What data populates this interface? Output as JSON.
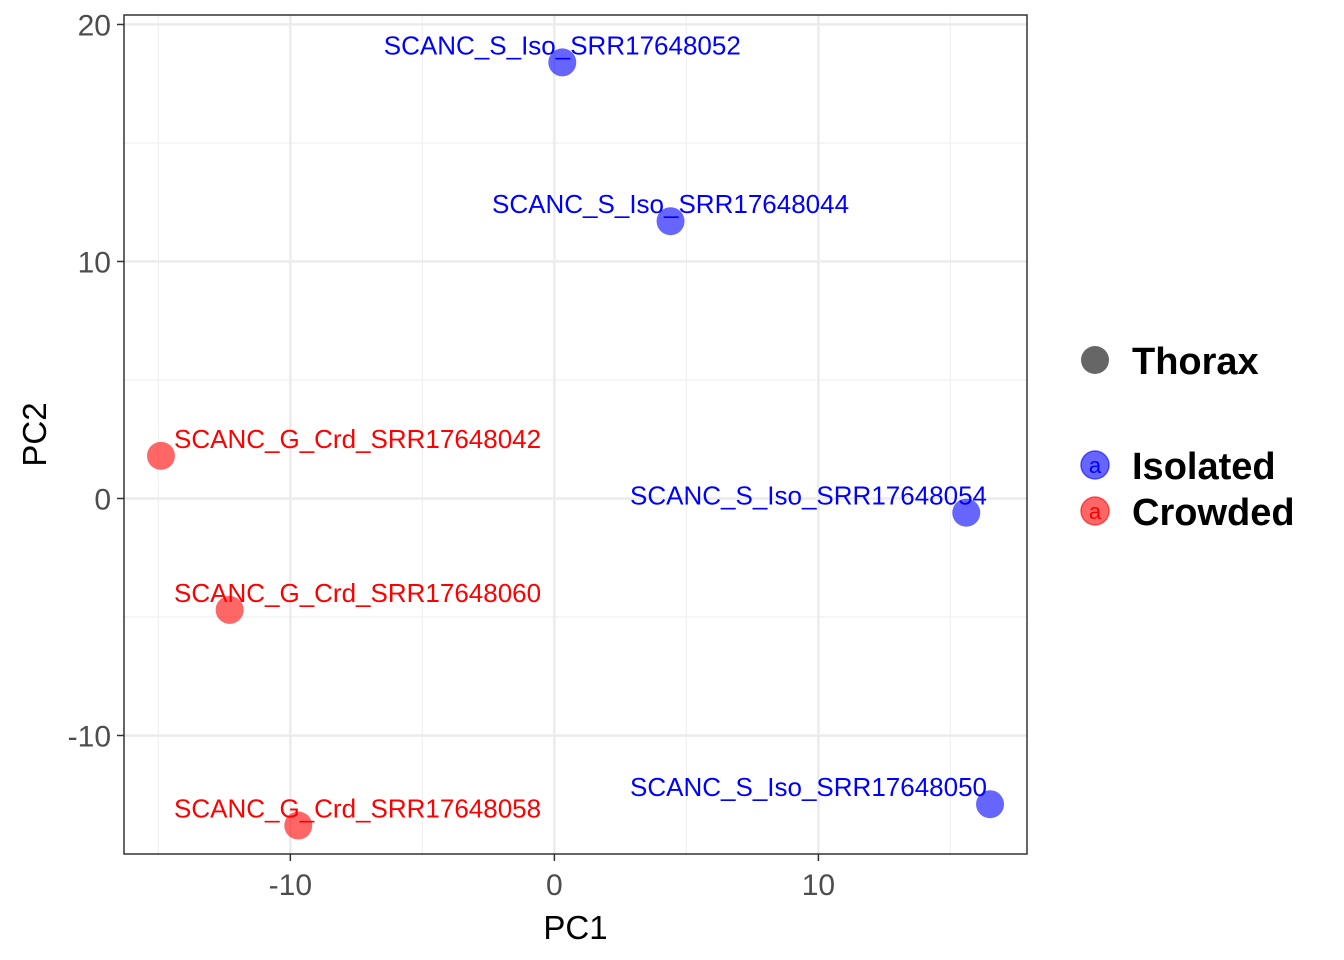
{
  "chart_data": {
    "type": "scatter",
    "xlabel": "PC1",
    "ylabel": "PC2",
    "xlim": [
      -16.3,
      17.9
    ],
    "ylim": [
      -15.0,
      20.4
    ],
    "x_ticks": [
      -10,
      0,
      10
    ],
    "y_ticks": [
      -10,
      0,
      10,
      20
    ],
    "grid": true,
    "legend_position": "right",
    "shape_legend": {
      "title": "Thorax",
      "color": "#666666"
    },
    "series": [
      {
        "name": "Isolated",
        "color": "#0000ff",
        "points": [
          {
            "x": 0.3,
            "y": 18.4,
            "label": "SCANC_S_Iso_SRR17648052"
          },
          {
            "x": 4.4,
            "y": 11.7,
            "label": "SCANC_S_Iso_SRR17648044"
          },
          {
            "x": 15.6,
            "y": -0.6,
            "label": "SCANC_S_Iso_SRR17648054"
          },
          {
            "x": 16.5,
            "y": -12.9,
            "label": "SCANC_S_Iso_SRR17648050"
          }
        ]
      },
      {
        "name": "Crowded",
        "color": "#ff0000",
        "points": [
          {
            "x": -14.9,
            "y": 1.8,
            "label": "SCANC_G_Crd_SRR17648042"
          },
          {
            "x": -12.3,
            "y": -4.7,
            "label": "SCANC_G_Crd_SRR17648060"
          },
          {
            "x": -9.7,
            "y": -13.8,
            "label": "SCANC_G_Crd_SRR17648058"
          }
        ]
      }
    ]
  },
  "legend": {
    "key_glyph": "a"
  }
}
